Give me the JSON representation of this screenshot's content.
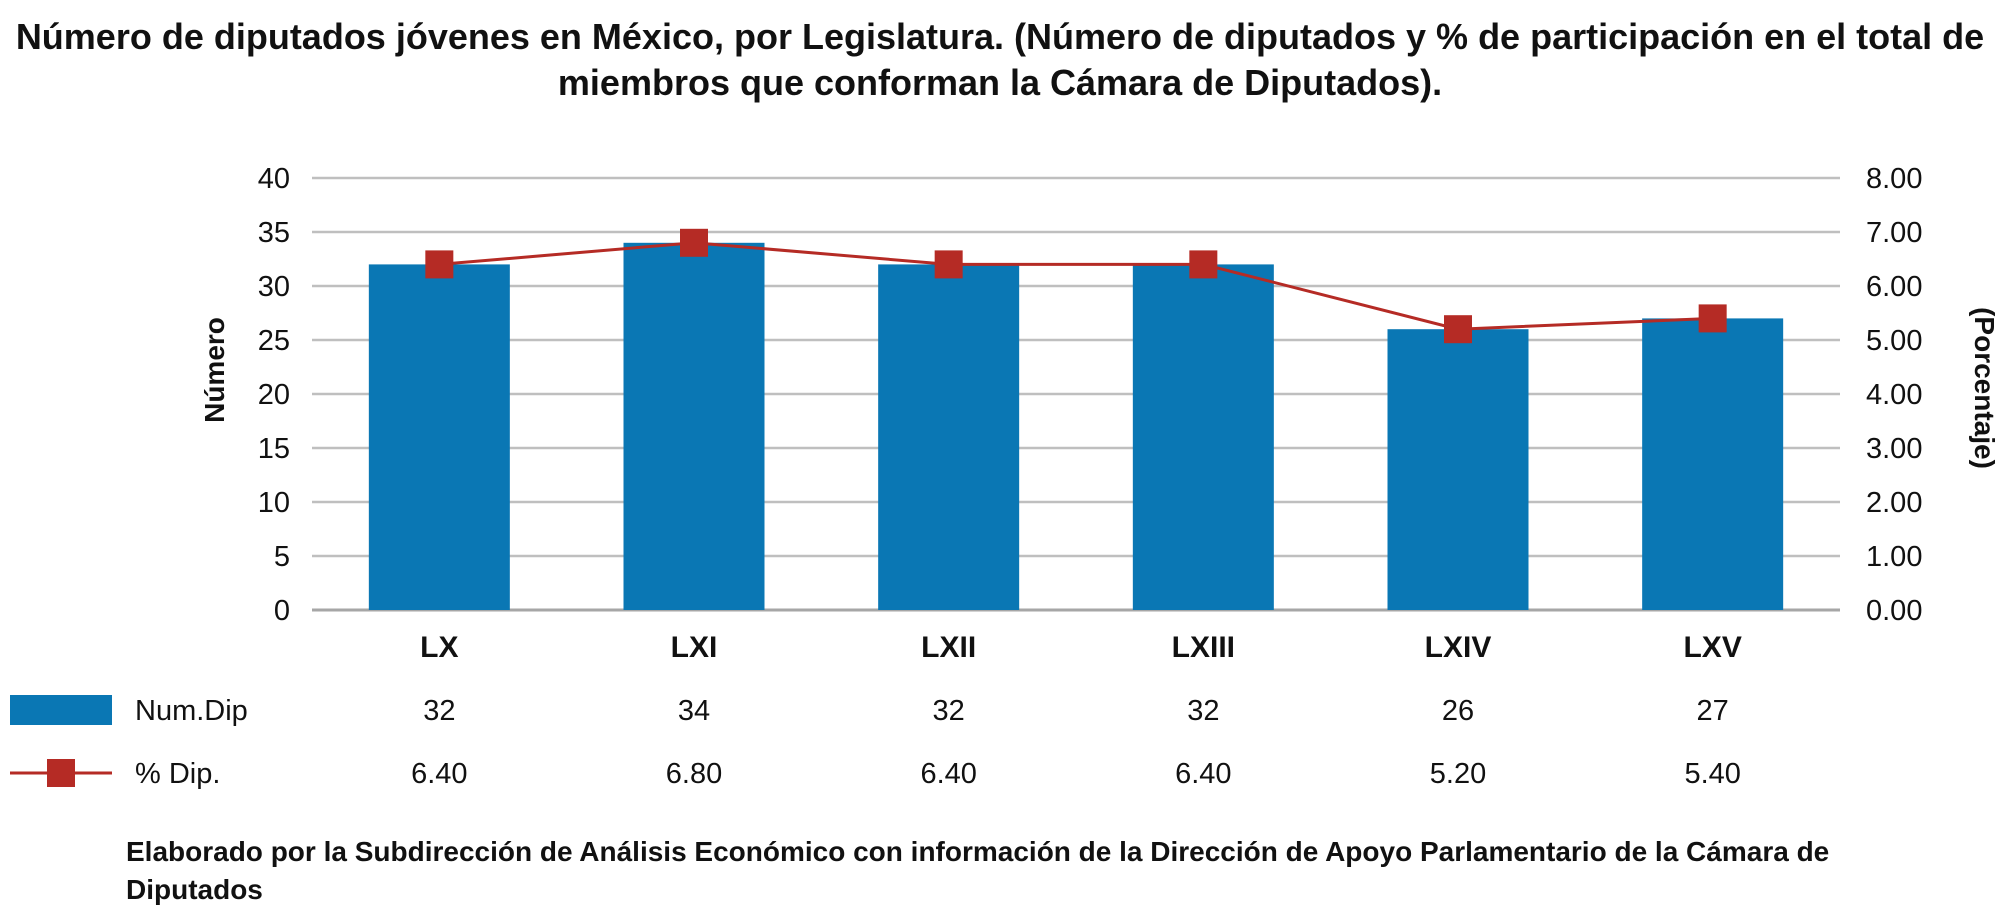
{
  "chart_data": {
    "type": "bar",
    "title": "Número de diputados jóvenes en México, por Legislatura. (Número de diputados y % de participación en el total de miembros que conforman la Cámara de Diputados).",
    "categories": [
      "LX",
      "LXI",
      "LXII",
      "LXIII",
      "LXIV",
      "LXV"
    ],
    "series": [
      {
        "name": "Num.Dip",
        "type": "bar",
        "axis": "left",
        "color": "#0a77b4",
        "values": [
          32,
          34,
          32,
          32,
          26,
          27
        ],
        "labels": [
          "32",
          "34",
          "32",
          "32",
          "26",
          "27"
        ]
      },
      {
        "name": "% Dip.",
        "type": "line",
        "axis": "right",
        "color": "#b52b25",
        "marker": "square",
        "values": [
          6.4,
          6.8,
          6.4,
          6.4,
          5.2,
          5.4
        ],
        "labels": [
          "6.40",
          "6.80",
          "6.40",
          "6.40",
          "5.20",
          "5.40"
        ]
      }
    ],
    "ylabel": "Número",
    "ylabel_right": "(Porcentaje)",
    "ylim": [
      0,
      40
    ],
    "ylim_right": [
      0,
      8
    ],
    "yticks": [
      "0",
      "5",
      "10",
      "15",
      "20",
      "25",
      "30",
      "35",
      "40"
    ],
    "yticks_right": [
      "0.00",
      "1.00",
      "2.00",
      "3.00",
      "4.00",
      "5.00",
      "6.00",
      "7.00",
      "8.00"
    ],
    "grid": true,
    "legend": "data-table-below"
  },
  "source_note": "Elaborado por la Subdirección de Análisis Económico con información de la Dirección de Apoyo Parlamentario de la Cámara de Diputados"
}
